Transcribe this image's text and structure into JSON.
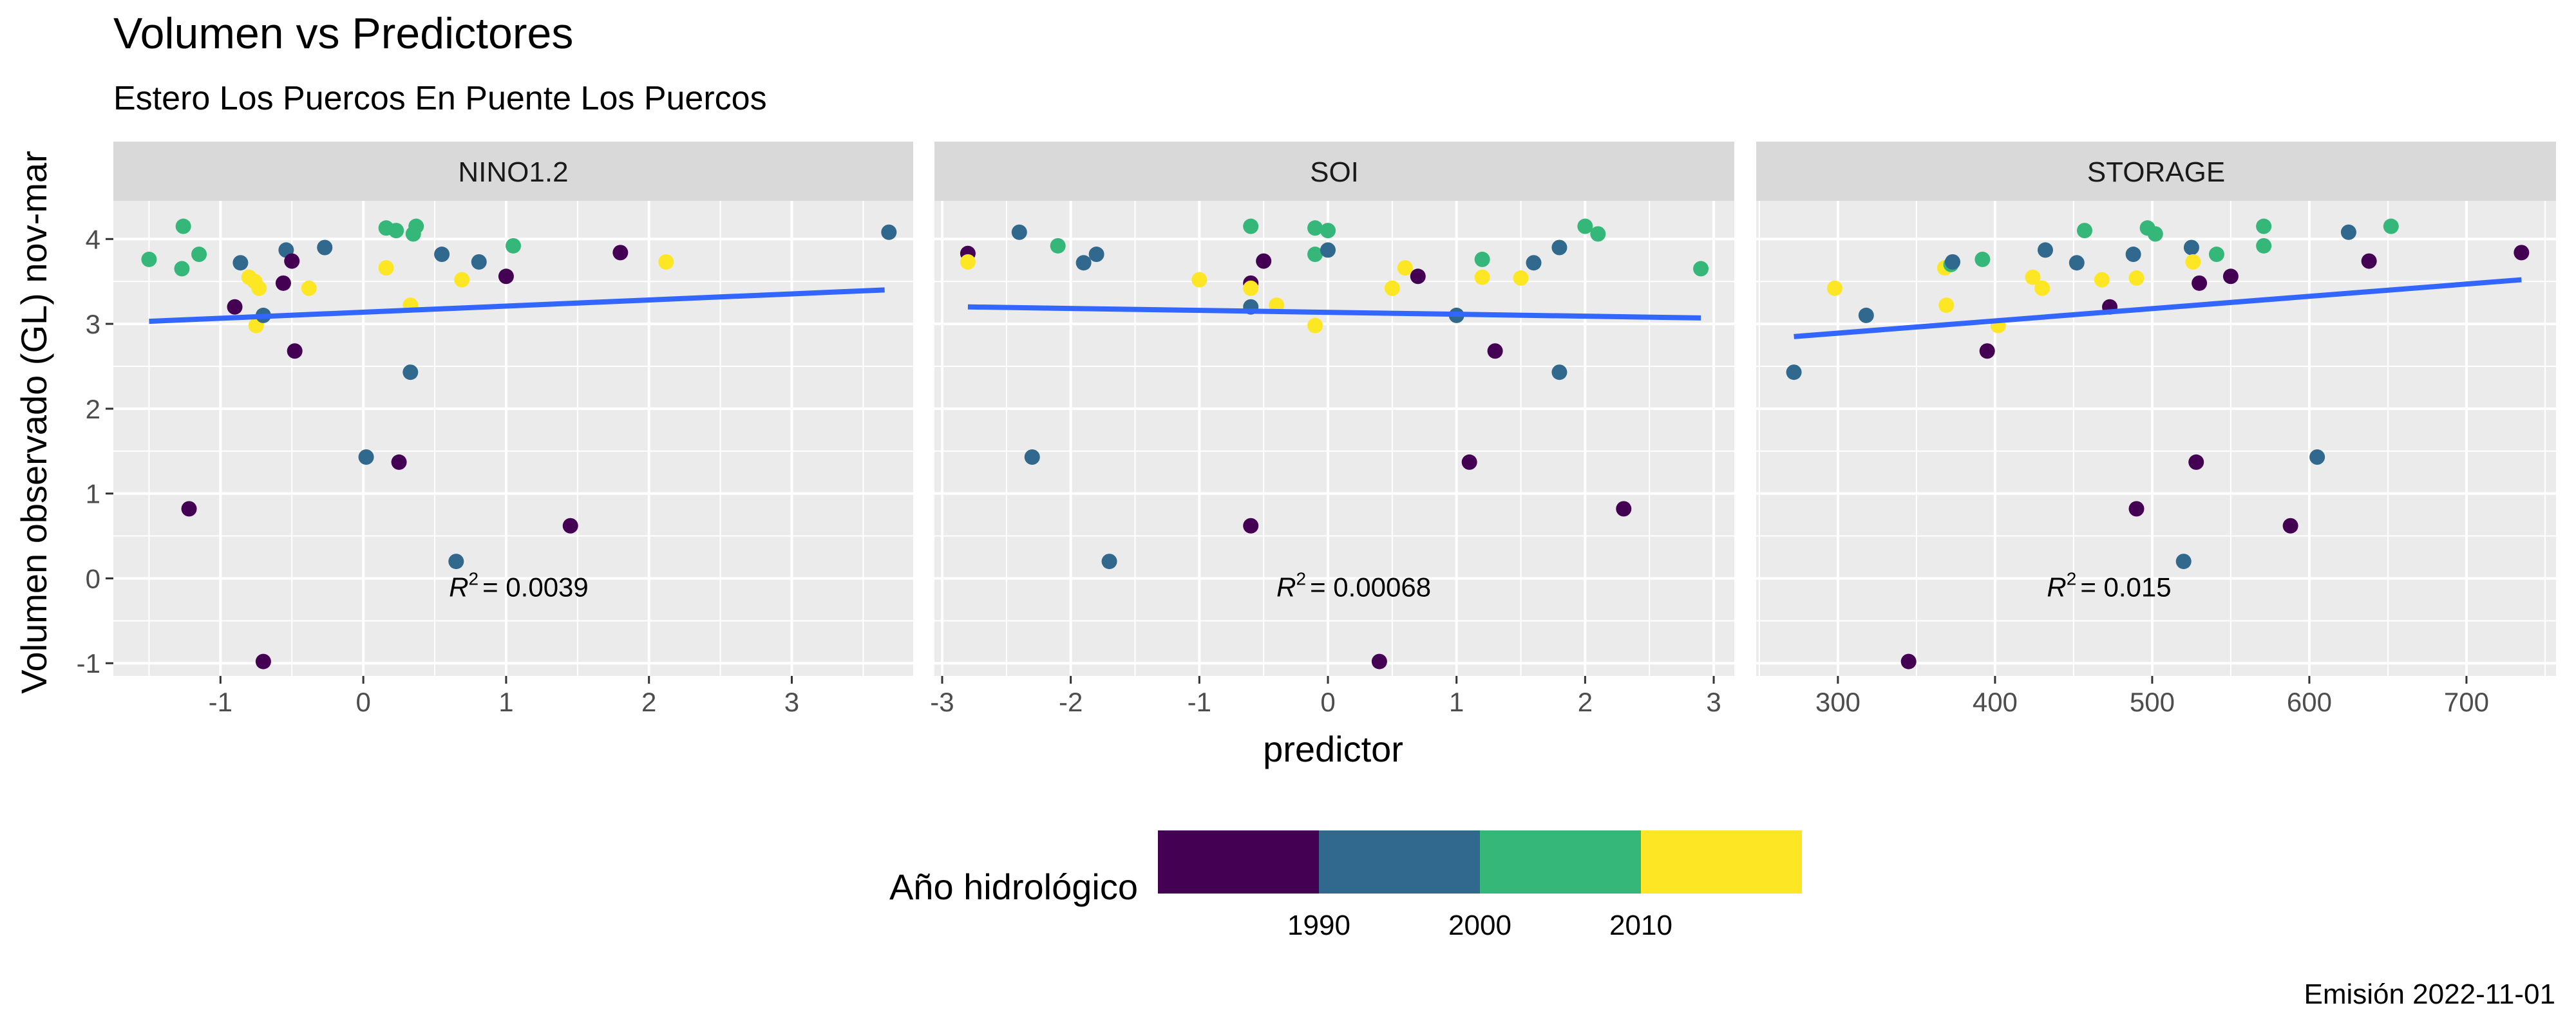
{
  "title": "Volumen vs Predictores",
  "subtitle": "Estero Los Puercos En Puente Los Puercos",
  "caption": "Emisión 2022-11-01",
  "ylabel": "Volumen observado (GL) nov-mar",
  "xlabel": "predictor",
  "legend": {
    "title": "Año hidrológico",
    "ticks": [
      "1990",
      "2000",
      "2010"
    ],
    "colors": [
      "#440154",
      "#31688E",
      "#35B779",
      "#FDE725"
    ]
  },
  "colors": {
    "panel_bg": "#EBEBEB",
    "strip_bg": "#D9D9D9",
    "grid": "#FFFFFF",
    "trend_line": "#3366FF",
    "c1980s": "#440154",
    "c1990s": "#31688E",
    "c2000s": "#35B779",
    "c2010s": "#FDE725"
  },
  "chart_data": [
    {
      "type": "scatter",
      "panel": "NINO1.2",
      "xlim": [
        -1.75,
        3.85
      ],
      "ylim": [
        -1.15,
        4.45
      ],
      "xticks": [
        "-1",
        "0",
        "1",
        "2",
        "3"
      ],
      "yticks": [
        "-1",
        "0",
        "1",
        "2",
        "3",
        "4"
      ],
      "annotation_label": "R",
      "annotation_value": "= 0.0039",
      "annotation_at": [
        0.6,
        -0.1
      ],
      "trend": [
        [
          -1.5,
          3.03
        ],
        [
          3.65,
          3.4
        ]
      ],
      "points": [
        {
          "x": -1.5,
          "y": 3.76,
          "c": "2000"
        },
        {
          "x": -1.27,
          "y": 3.65,
          "c": "2000"
        },
        {
          "x": -1.26,
          "y": 4.15,
          "c": "2000"
        },
        {
          "x": -1.22,
          "y": 0.82,
          "c": "1980"
        },
        {
          "x": -1.15,
          "y": 3.82,
          "c": "2000"
        },
        {
          "x": -0.9,
          "y": 3.2,
          "c": "1980"
        },
        {
          "x": -0.86,
          "y": 3.72,
          "c": "1990"
        },
        {
          "x": -0.8,
          "y": 3.55,
          "c": "2010"
        },
        {
          "x": -0.76,
          "y": 3.5,
          "c": "2010"
        },
        {
          "x": -0.75,
          "y": 2.98,
          "c": "2010"
        },
        {
          "x": -0.73,
          "y": 3.42,
          "c": "2010"
        },
        {
          "x": -0.7,
          "y": 3.1,
          "c": "1990"
        },
        {
          "x": -0.7,
          "y": -0.98,
          "c": "1980"
        },
        {
          "x": -0.56,
          "y": 3.48,
          "c": "1980"
        },
        {
          "x": -0.54,
          "y": 3.87,
          "c": "1990"
        },
        {
          "x": -0.5,
          "y": 3.74,
          "c": "1980"
        },
        {
          "x": -0.48,
          "y": 2.68,
          "c": "1980"
        },
        {
          "x": -0.38,
          "y": 3.42,
          "c": "2010"
        },
        {
          "x": -0.27,
          "y": 3.9,
          "c": "1990"
        },
        {
          "x": 0.02,
          "y": 1.43,
          "c": "1990"
        },
        {
          "x": 0.16,
          "y": 3.66,
          "c": "2010"
        },
        {
          "x": 0.16,
          "y": 4.13,
          "c": "2000"
        },
        {
          "x": 0.23,
          "y": 4.1,
          "c": "2000"
        },
        {
          "x": 0.25,
          "y": 1.37,
          "c": "1980"
        },
        {
          "x": 0.33,
          "y": 3.22,
          "c": "2010"
        },
        {
          "x": 0.33,
          "y": 2.43,
          "c": "1990"
        },
        {
          "x": 0.35,
          "y": 4.06,
          "c": "2000"
        },
        {
          "x": 0.37,
          "y": 4.15,
          "c": "2000"
        },
        {
          "x": 0.55,
          "y": 3.82,
          "c": "1990"
        },
        {
          "x": 0.65,
          "y": 0.2,
          "c": "1990"
        },
        {
          "x": 0.69,
          "y": 3.52,
          "c": "2010"
        },
        {
          "x": 0.81,
          "y": 3.73,
          "c": "1990"
        },
        {
          "x": 1.0,
          "y": 3.56,
          "c": "1980"
        },
        {
          "x": 1.05,
          "y": 3.92,
          "c": "2000"
        },
        {
          "x": 1.45,
          "y": 0.62,
          "c": "1980"
        },
        {
          "x": 1.8,
          "y": 3.84,
          "c": "1980"
        },
        {
          "x": 2.12,
          "y": 3.73,
          "c": "2010"
        },
        {
          "x": 3.68,
          "y": 4.08,
          "c": "1990"
        }
      ]
    },
    {
      "type": "scatter",
      "panel": "SOI",
      "xlim": [
        -3.06,
        3.16
      ],
      "ylim": [
        -1.15,
        4.45
      ],
      "xticks": [
        "-3",
        "-2",
        "-1",
        "0",
        "1",
        "2",
        "3"
      ],
      "yticks": [
        "-1",
        "0",
        "1",
        "2",
        "3",
        "4"
      ],
      "annotation_label": "R",
      "annotation_value": "= 0.00068",
      "annotation_at": [
        -0.4,
        -0.1
      ],
      "trend": [
        [
          -2.8,
          3.2
        ],
        [
          2.9,
          3.07
        ]
      ],
      "points": [
        {
          "x": -2.8,
          "y": 3.83,
          "c": "1980"
        },
        {
          "x": -2.8,
          "y": 3.73,
          "c": "2010"
        },
        {
          "x": -2.4,
          "y": 4.08,
          "c": "1990"
        },
        {
          "x": -2.3,
          "y": 1.43,
          "c": "1990"
        },
        {
          "x": -2.1,
          "y": 3.92,
          "c": "2000"
        },
        {
          "x": -1.9,
          "y": 3.72,
          "c": "1990"
        },
        {
          "x": -1.8,
          "y": 3.82,
          "c": "1990"
        },
        {
          "x": -1.7,
          "y": 0.2,
          "c": "1990"
        },
        {
          "x": -1.0,
          "y": 3.52,
          "c": "2010"
        },
        {
          "x": -0.6,
          "y": 4.15,
          "c": "2000"
        },
        {
          "x": -0.6,
          "y": 3.48,
          "c": "1980"
        },
        {
          "x": -0.6,
          "y": 3.42,
          "c": "2010"
        },
        {
          "x": -0.6,
          "y": 3.2,
          "c": "1990"
        },
        {
          "x": -0.6,
          "y": 0.62,
          "c": "1980"
        },
        {
          "x": -0.5,
          "y": 3.74,
          "c": "1980"
        },
        {
          "x": -0.4,
          "y": 3.22,
          "c": "2010"
        },
        {
          "x": -0.1,
          "y": 4.13,
          "c": "2000"
        },
        {
          "x": -0.1,
          "y": 3.82,
          "c": "2000"
        },
        {
          "x": -0.1,
          "y": 2.98,
          "c": "2010"
        },
        {
          "x": 0.0,
          "y": 4.1,
          "c": "2000"
        },
        {
          "x": 0.0,
          "y": 3.87,
          "c": "1990"
        },
        {
          "x": 0.4,
          "y": -0.98,
          "c": "1980"
        },
        {
          "x": 0.5,
          "y": 3.42,
          "c": "2010"
        },
        {
          "x": 0.6,
          "y": 3.66,
          "c": "2010"
        },
        {
          "x": 0.7,
          "y": 3.56,
          "c": "1980"
        },
        {
          "x": 1.0,
          "y": 3.1,
          "c": "1990"
        },
        {
          "x": 1.1,
          "y": 1.37,
          "c": "1980"
        },
        {
          "x": 1.2,
          "y": 3.76,
          "c": "2000"
        },
        {
          "x": 1.2,
          "y": 3.55,
          "c": "2010"
        },
        {
          "x": 1.3,
          "y": 2.68,
          "c": "1980"
        },
        {
          "x": 1.5,
          "y": 3.54,
          "c": "2010"
        },
        {
          "x": 1.6,
          "y": 3.72,
          "c": "1990"
        },
        {
          "x": 1.8,
          "y": 3.9,
          "c": "1990"
        },
        {
          "x": 1.8,
          "y": 2.43,
          "c": "1990"
        },
        {
          "x": 2.0,
          "y": 4.15,
          "c": "2000"
        },
        {
          "x": 2.1,
          "y": 4.06,
          "c": "2000"
        },
        {
          "x": 2.3,
          "y": 0.82,
          "c": "1980"
        },
        {
          "x": 2.9,
          "y": 3.65,
          "c": "2000"
        }
      ]
    },
    {
      "type": "scatter",
      "panel": "STORAGE",
      "xlim": [
        248,
        757
      ],
      "ylim": [
        -1.15,
        4.45
      ],
      "xticks": [
        "300",
        "400",
        "500",
        "600",
        "700"
      ],
      "yticks": [
        "-1",
        "0",
        "1",
        "2",
        "3",
        "4"
      ],
      "annotation_label": "R",
      "annotation_value": "= 0.015",
      "annotation_at": [
        433,
        -0.1
      ],
      "trend": [
        [
          272,
          2.85
        ],
        [
          735,
          3.52
        ]
      ],
      "points": [
        {
          "x": 272,
          "y": 2.43,
          "c": "1990"
        },
        {
          "x": 298,
          "y": 3.42,
          "c": "2010"
        },
        {
          "x": 318,
          "y": 3.1,
          "c": "1990"
        },
        {
          "x": 345,
          "y": -0.98,
          "c": "1980"
        },
        {
          "x": 368,
          "y": 3.66,
          "c": "2010"
        },
        {
          "x": 369,
          "y": 3.22,
          "c": "2010"
        },
        {
          "x": 372,
          "y": 3.7,
          "c": "2000"
        },
        {
          "x": 373,
          "y": 3.73,
          "c": "1990"
        },
        {
          "x": 392,
          "y": 3.76,
          "c": "2000"
        },
        {
          "x": 395,
          "y": 2.68,
          "c": "1980"
        },
        {
          "x": 402,
          "y": 2.98,
          "c": "2010"
        },
        {
          "x": 424,
          "y": 3.55,
          "c": "2010"
        },
        {
          "x": 430,
          "y": 3.42,
          "c": "2010"
        },
        {
          "x": 432,
          "y": 3.87,
          "c": "1990"
        },
        {
          "x": 452,
          "y": 3.72,
          "c": "1990"
        },
        {
          "x": 457,
          "y": 4.1,
          "c": "2000"
        },
        {
          "x": 468,
          "y": 3.52,
          "c": "2010"
        },
        {
          "x": 473,
          "y": 3.2,
          "c": "1980"
        },
        {
          "x": 488,
          "y": 3.82,
          "c": "1990"
        },
        {
          "x": 490,
          "y": 0.82,
          "c": "1980"
        },
        {
          "x": 490,
          "y": 3.54,
          "c": "2010"
        },
        {
          "x": 497,
          "y": 4.13,
          "c": "2000"
        },
        {
          "x": 502,
          "y": 4.06,
          "c": "2000"
        },
        {
          "x": 520,
          "y": 0.2,
          "c": "1990"
        },
        {
          "x": 525,
          "y": 3.9,
          "c": "1990"
        },
        {
          "x": 526,
          "y": 3.73,
          "c": "2010"
        },
        {
          "x": 528,
          "y": 1.37,
          "c": "1980"
        },
        {
          "x": 530,
          "y": 3.48,
          "c": "1980"
        },
        {
          "x": 541,
          "y": 3.82,
          "c": "2000"
        },
        {
          "x": 550,
          "y": 3.56,
          "c": "1980"
        },
        {
          "x": 571,
          "y": 4.15,
          "c": "2000"
        },
        {
          "x": 571,
          "y": 3.92,
          "c": "2000"
        },
        {
          "x": 588,
          "y": 0.62,
          "c": "1980"
        },
        {
          "x": 605,
          "y": 1.43,
          "c": "1990"
        },
        {
          "x": 625,
          "y": 4.08,
          "c": "1990"
        },
        {
          "x": 638,
          "y": 3.74,
          "c": "1980"
        },
        {
          "x": 652,
          "y": 4.15,
          "c": "2000"
        },
        {
          "x": 735,
          "y": 3.84,
          "c": "1980"
        }
      ]
    }
  ]
}
